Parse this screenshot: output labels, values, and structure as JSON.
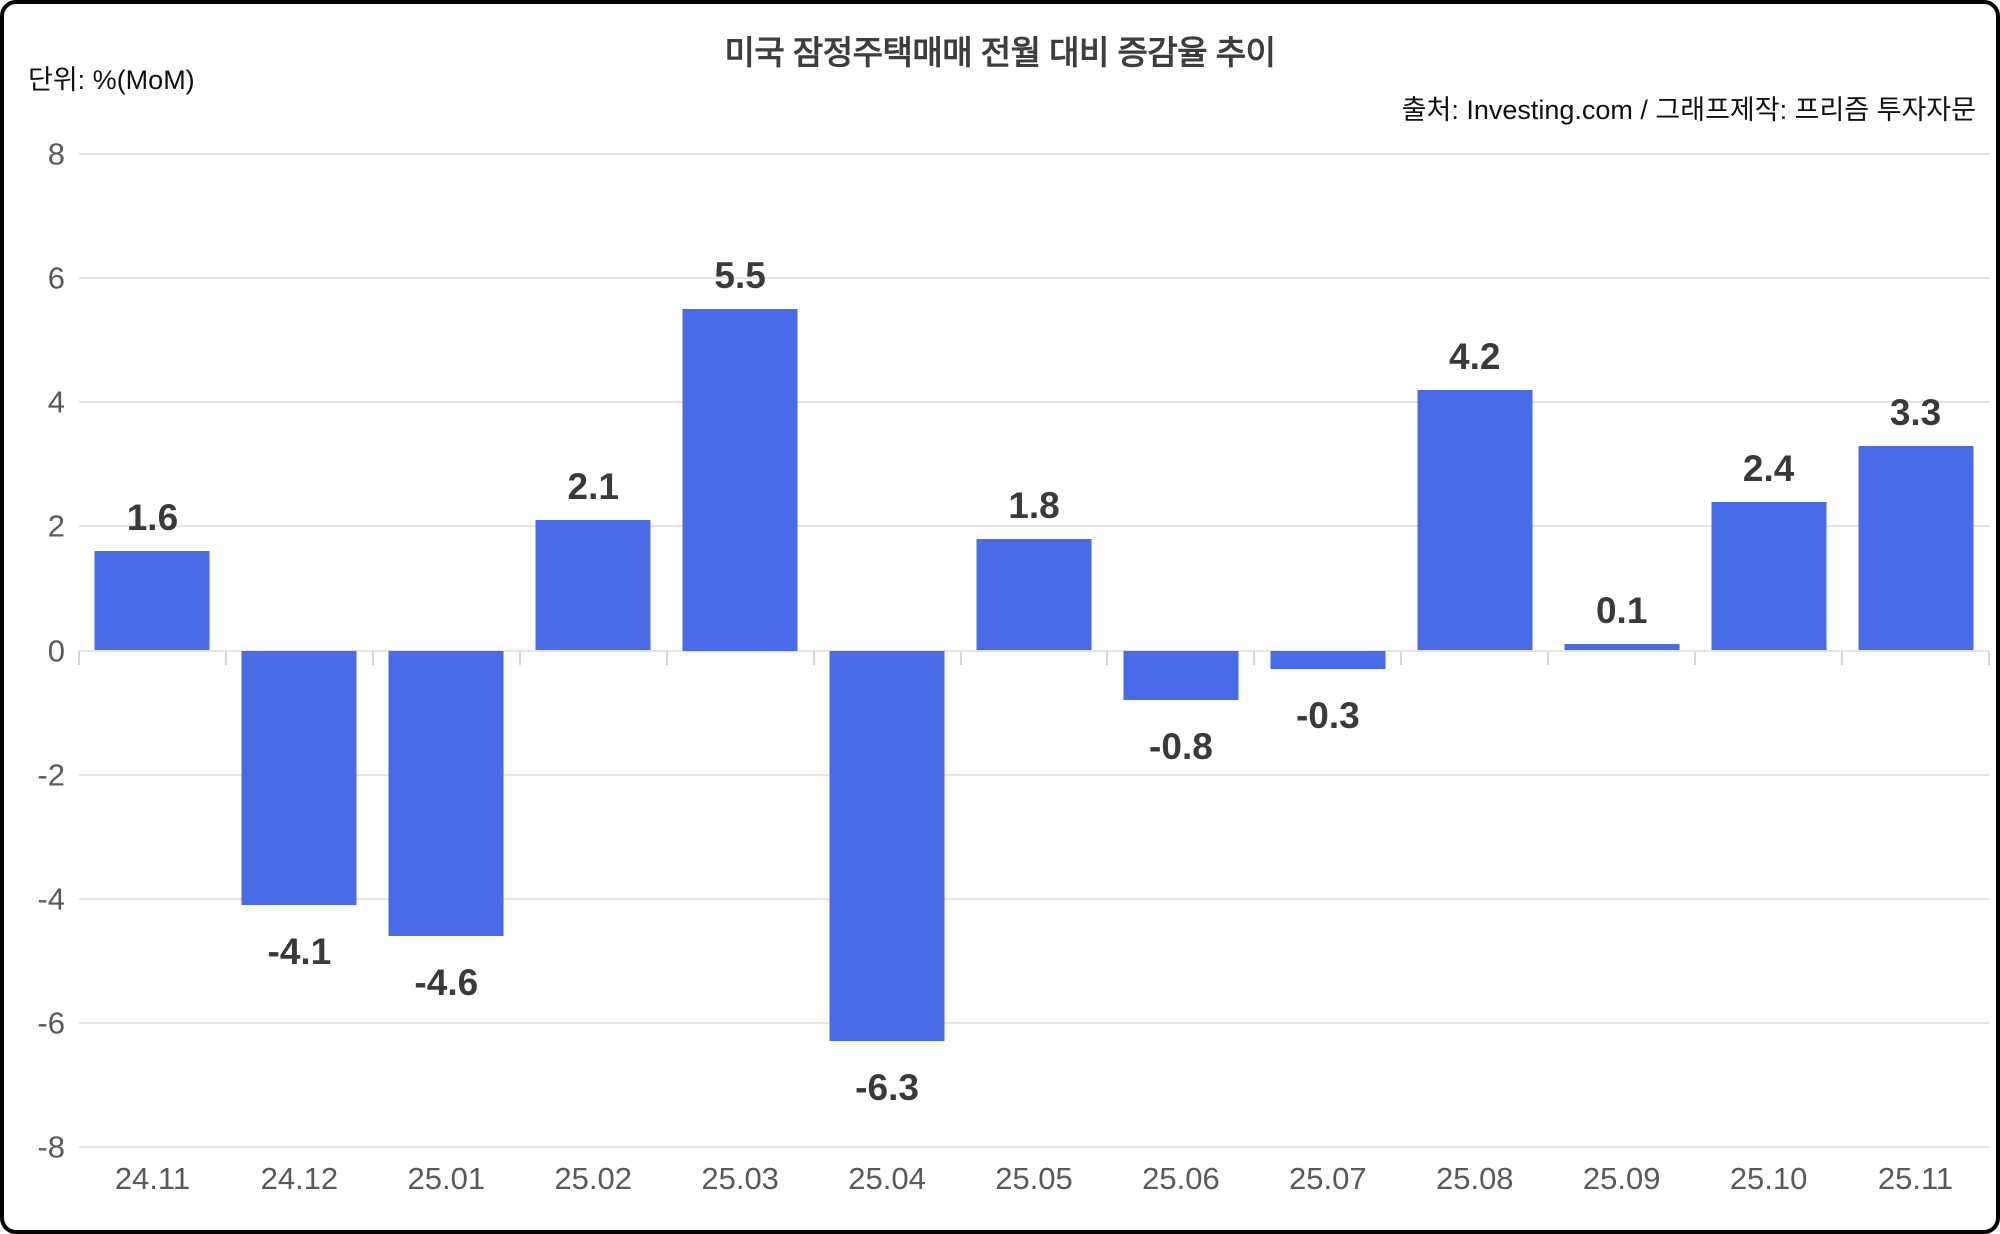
{
  "header": {
    "title": "미국 잠정주택매매 전월 대비 증감율 추이",
    "unit_label": "단위: %(MoM)",
    "source_label": "출처: Investing.com / 그래프제작: 프리즘 투자자문"
  },
  "chart_data": {
    "type": "bar",
    "title": "미국 잠정주택매매 전월 대비 증감율 추이",
    "xlabel": "",
    "ylabel": "단위: %(MoM)",
    "categories": [
      "24.11",
      "24.12",
      "25.01",
      "25.02",
      "25.03",
      "25.04",
      "25.05",
      "25.06",
      "25.07",
      "25.08",
      "25.09",
      "25.10",
      "25.11"
    ],
    "values": [
      1.6,
      -4.1,
      -4.6,
      2.1,
      5.5,
      -6.3,
      1.8,
      -0.8,
      -0.3,
      4.2,
      0.1,
      2.4,
      3.3
    ],
    "data_labels": [
      "1.6",
      "-4.1",
      "-4.6",
      "2.1",
      "5.5",
      "-6.3",
      "1.8",
      "-0.8",
      "-0.3",
      "4.2",
      "0.1",
      "2.4",
      "3.3"
    ],
    "ylim": [
      -8,
      8
    ],
    "yticks": [
      8,
      6,
      4,
      2,
      0,
      -2,
      -4,
      -6,
      -8
    ],
    "grid": true,
    "legend": false,
    "bar_color": "#4a6be8",
    "label_color": "#3a3a3a",
    "axis_text_color": "#595959",
    "gridline_color": "#e4e4e4",
    "border_color": "#000000",
    "background_color": "#ffffff"
  }
}
